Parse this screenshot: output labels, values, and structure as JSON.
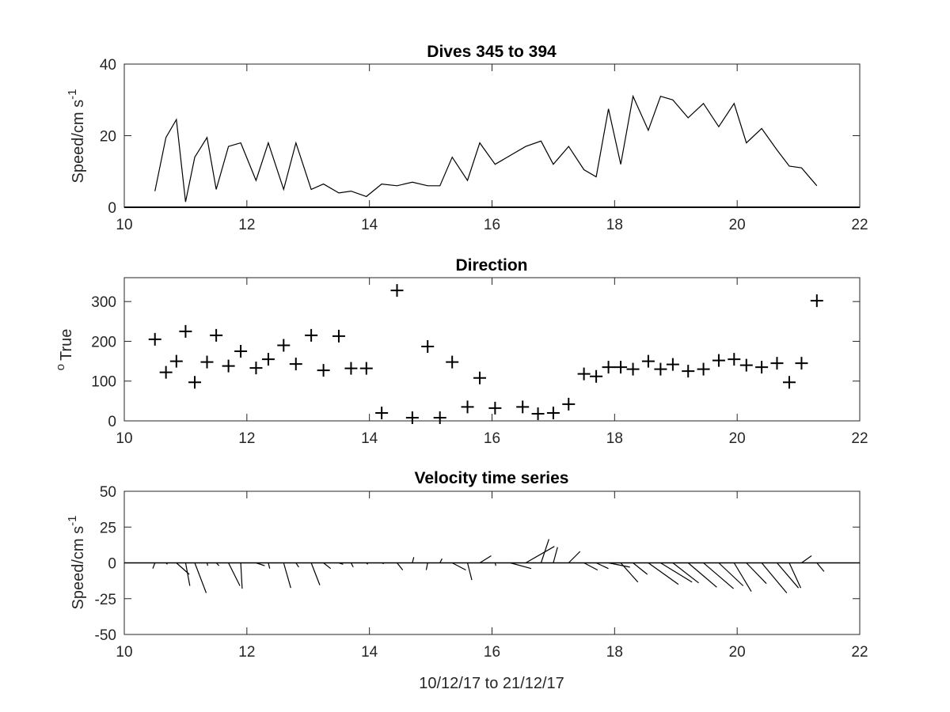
{
  "chart_data": [
    {
      "type": "line",
      "title": "Dives 345 to 394",
      "xlabel": "",
      "ylabel": "Speed/cm s",
      "ylabel_superscript": "-1",
      "xlim": [
        10,
        22
      ],
      "ylim": [
        0,
        40
      ],
      "xticks": [
        "10",
        "12",
        "14",
        "16",
        "18",
        "20",
        "22"
      ],
      "yticks": [
        "0",
        "20",
        "40"
      ],
      "color": "#000000",
      "x": [
        10.5,
        10.68,
        10.85,
        11.0,
        11.15,
        11.35,
        11.5,
        11.7,
        11.9,
        12.15,
        12.35,
        12.6,
        12.8,
        13.05,
        13.25,
        13.5,
        13.7,
        13.95,
        14.2,
        14.45,
        14.7,
        14.95,
        15.15,
        15.35,
        15.6,
        15.8,
        16.05,
        16.3,
        16.55,
        16.8,
        17.0,
        17.25,
        17.5,
        17.7,
        17.9,
        18.1,
        18.3,
        18.55,
        18.75,
        18.95,
        19.2,
        19.45,
        19.7,
        19.95,
        20.15,
        20.4,
        20.65,
        20.85,
        21.05,
        21.3
      ],
      "y": [
        4.5,
        19.5,
        24.5,
        1.5,
        14.0,
        19.5,
        5.0,
        17.0,
        18.0,
        7.5,
        18.0,
        5.0,
        18.0,
        5.0,
        6.5,
        4.0,
        4.5,
        3.0,
        6.5,
        6.0,
        7.0,
        6.0,
        6.0,
        14.0,
        7.5,
        18.0,
        12.0,
        14.5,
        17.0,
        18.5,
        12.0,
        17.0,
        10.5,
        8.5,
        27.5,
        12.0,
        31.0,
        21.5,
        31.0,
        30.0,
        25.0,
        29.0,
        22.5,
        29.0,
        18.0,
        22.0,
        16.0,
        11.5,
        11.0,
        6.0
      ]
    },
    {
      "type": "scatter",
      "title": "Direction",
      "xlabel": "",
      "ylabel": "True",
      "ylabel_prefix_superscript": "o",
      "xlim": [
        10,
        22
      ],
      "ylim": [
        0,
        360
      ],
      "xticks": [
        "10",
        "12",
        "14",
        "16",
        "18",
        "20",
        "22"
      ],
      "yticks": [
        "0",
        "100",
        "200",
        "300"
      ],
      "marker": "+",
      "color": "#000000",
      "x": [
        10.5,
        10.68,
        10.85,
        11.0,
        11.15,
        11.35,
        11.5,
        11.7,
        11.9,
        12.15,
        12.35,
        12.6,
        12.8,
        13.05,
        13.25,
        13.5,
        13.7,
        13.95,
        14.2,
        14.45,
        14.7,
        14.95,
        15.15,
        15.35,
        15.6,
        15.8,
        16.05,
        16.5,
        16.75,
        17.0,
        17.25,
        17.5,
        17.7,
        17.9,
        18.1,
        18.3,
        18.55,
        18.75,
        18.95,
        19.2,
        19.45,
        19.7,
        19.95,
        20.15,
        20.4,
        20.65,
        20.85,
        21.05,
        21.3
      ],
      "y": [
        205,
        122,
        150,
        225,
        97,
        148,
        215,
        138,
        175,
        133,
        155,
        190,
        143,
        215,
        127,
        213,
        132,
        132,
        20,
        328,
        8,
        187,
        8,
        148,
        35,
        108,
        32,
        35,
        18,
        20,
        42,
        118,
        112,
        135,
        135,
        130,
        150,
        130,
        142,
        125,
        130,
        152,
        155,
        140,
        135,
        145,
        97,
        145,
        302
      ]
    },
    {
      "type": "quiver",
      "title": "Velocity time series",
      "xlabel": "10/12/17 to 21/12/17",
      "ylabel": "Speed/cm s",
      "ylabel_superscript": "-1",
      "xlim": [
        10,
        22
      ],
      "ylim": [
        -50,
        50
      ],
      "xticks": [
        "10",
        "12",
        "14",
        "16",
        "18",
        "20",
        "22"
      ],
      "yticks": [
        "-50",
        "-25",
        "0",
        "25",
        "50"
      ],
      "baseline": 0,
      "color": "#000000",
      "x": [
        10.5,
        10.68,
        10.85,
        11.0,
        11.15,
        11.35,
        11.5,
        11.7,
        11.9,
        12.15,
        12.35,
        12.6,
        12.8,
        13.05,
        13.25,
        13.5,
        13.7,
        13.95,
        14.2,
        14.45,
        14.7,
        14.95,
        15.15,
        15.35,
        15.6,
        15.8,
        16.05,
        16.3,
        16.55,
        16.8,
        17.0,
        17.25,
        17.5,
        17.7,
        17.9,
        18.1,
        18.3,
        18.55,
        18.75,
        18.95,
        19.2,
        19.45,
        19.7,
        19.95,
        20.15,
        20.4,
        20.65,
        20.85,
        21.05,
        21.3
      ],
      "u": [
        -1.5,
        1.0,
        9.0,
        3.0,
        8.0,
        0.5,
        2.0,
        8.0,
        1.0,
        6.0,
        1.0,
        5.0,
        2.0,
        6.0,
        5.0,
        3.0,
        1.5,
        1.0,
        1.5,
        4.0,
        1.0,
        -1.0,
        1.5,
        9.5,
        3.0,
        8.0,
        0.5,
        14.5,
        20.0,
        5.5,
        3.0,
        8.0,
        9.5,
        8.5,
        15.0,
        12.0,
        10.0,
        21.0,
        22.0,
        18.0,
        20.0,
        21.0,
        17.0,
        12.0,
        14.0,
        17.5,
        15.0,
        8.0,
        7.0,
        5.0
      ],
      "v": [
        -4.0,
        -1.0,
        -8.0,
        -16.0,
        -21.0,
        -2.0,
        -2.0,
        -16.0,
        -18.0,
        -2.0,
        -4.0,
        -17.5,
        -3.0,
        -15.5,
        -4.0,
        -1.0,
        -3.0,
        -1.0,
        -0.5,
        -5.0,
        4.0,
        -5.0,
        3.0,
        -5.0,
        -12.0,
        5.0,
        -2.0,
        -4.0,
        11.5,
        16.5,
        11.0,
        8.0,
        -5.0,
        -4.0,
        -3.0,
        -13.5,
        -8.0,
        -15.0,
        -13.5,
        -14.0,
        -17.0,
        -18.0,
        -16.0,
        -20.0,
        -14.5,
        -21.0,
        -17.5,
        -17.5,
        5.0,
        -6.0
      ]
    }
  ]
}
